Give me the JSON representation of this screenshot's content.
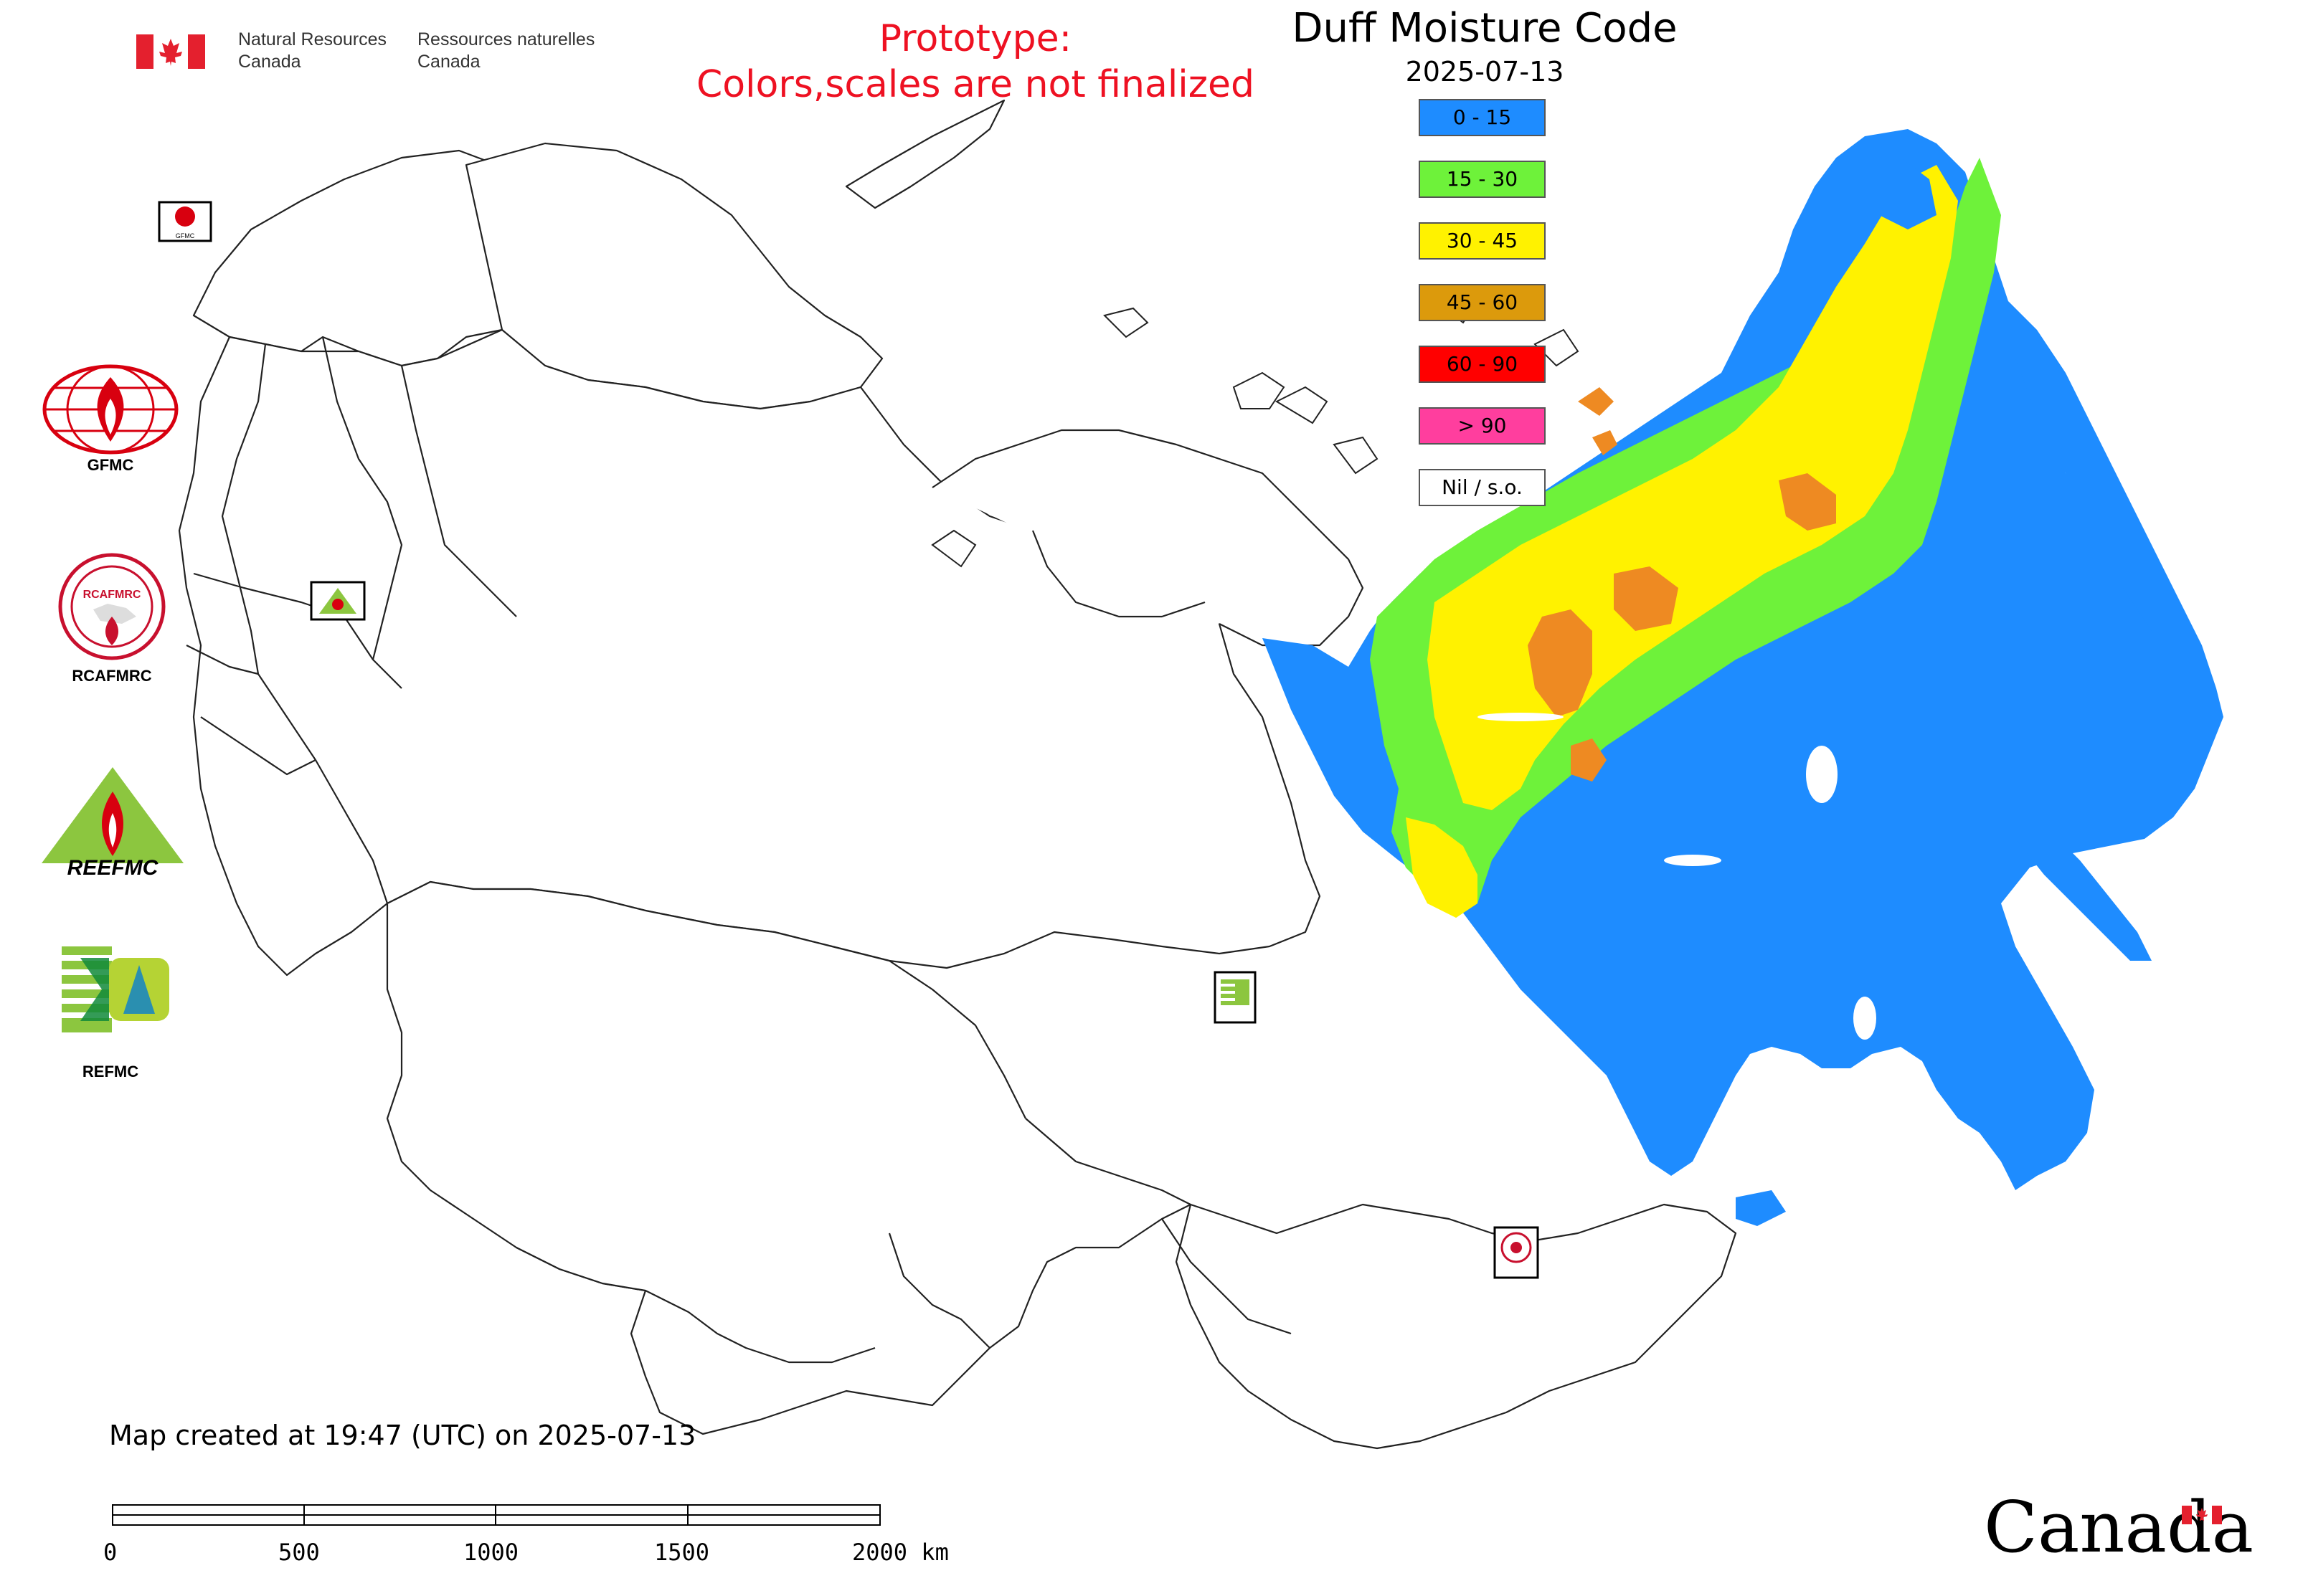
{
  "header": {
    "nrcan_en": [
      "Natural Resources",
      "Canada"
    ],
    "nrcan_fr": [
      "Ressources naturelles",
      "Canada"
    ],
    "prototype_line1": "Prototype:",
    "prototype_line2": "Colors,scales are not finalized",
    "prototype_color": "#ee1122",
    "title": "Duff Moisture Code",
    "date": "2025-07-13"
  },
  "legend": {
    "items": [
      {
        "label": "0 - 15",
        "color": "#1e8cff"
      },
      {
        "label": "15 - 30",
        "color": "#6ef23a"
      },
      {
        "label": "30 - 45",
        "color": "#fff200"
      },
      {
        "label": "45 - 60",
        "color": "#dc9a0c"
      },
      {
        "label": "60 - 90",
        "color": "#ff0000"
      },
      {
        "label": "> 90",
        "color": "#ff3e9e"
      },
      {
        "label": "Nil / s.o.",
        "color": "#ffffff"
      }
    ]
  },
  "orgs": [
    {
      "label": "GFMC",
      "icon": "gfmc-logo"
    },
    {
      "label": "RCAFMRC",
      "icon": "rcafmrc-logo"
    },
    {
      "label": "",
      "icon": "reefmc-logo",
      "wordmark": "REEFMC"
    },
    {
      "label": "REFMC",
      "icon": "refmc-logo"
    }
  ],
  "map_markers": {
    "gfmc": "GFMC",
    "reefmc": "REEFMC",
    "refmc": "REFMC",
    "rcafmrc": "RCAFMRC"
  },
  "footer": {
    "created": "Map created at 19:47 (UTC) on 2025-07-13",
    "scale_ticks": [
      "0",
      "500",
      "1000",
      "1500",
      "2000 km"
    ],
    "wordmark": "Canada"
  }
}
